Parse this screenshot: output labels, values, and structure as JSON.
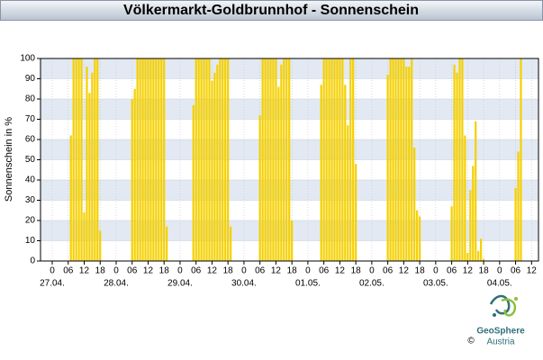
{
  "chart_data": {
    "type": "bar",
    "title": "Völkermarkt-Goldbrunnhof - Sonnenschein",
    "y_label": "Sonnenschein in %",
    "color": "#f5d000",
    "x": [
      7,
      8,
      9,
      10,
      11,
      12,
      13,
      14,
      15,
      16,
      17,
      18,
      30,
      31,
      32,
      33,
      34,
      35,
      36,
      37,
      38,
      39,
      40,
      41,
      42,
      43,
      53,
      54,
      55,
      56,
      57,
      58,
      59,
      60,
      61,
      62,
      63,
      64,
      65,
      66,
      67,
      78,
      79,
      80,
      81,
      82,
      83,
      84,
      85,
      86,
      87,
      88,
      89,
      90,
      101,
      102,
      103,
      104,
      105,
      106,
      107,
      108,
      109,
      110,
      111,
      112,
      113,
      114,
      126,
      127,
      128,
      129,
      130,
      131,
      132,
      133,
      134,
      135,
      136,
      137,
      138,
      150,
      151,
      152,
      153,
      154,
      155,
      156,
      157,
      158,
      159,
      160,
      161,
      162,
      174,
      175,
      176
    ],
    "values": [
      62,
      100,
      100,
      100,
      100,
      24,
      96,
      83,
      93,
      100,
      100,
      15,
      80,
      85,
      100,
      100,
      100,
      100,
      100,
      100,
      100,
      100,
      100,
      100,
      100,
      17,
      77,
      100,
      100,
      100,
      100,
      100,
      100,
      89,
      93,
      97,
      100,
      100,
      100,
      100,
      17,
      72,
      100,
      100,
      100,
      100,
      100,
      100,
      86,
      97,
      100,
      100,
      100,
      20,
      87,
      100,
      100,
      100,
      100,
      100,
      100,
      100,
      100,
      87,
      67,
      100,
      100,
      48,
      92,
      100,
      100,
      100,
      100,
      100,
      100,
      96,
      96,
      100,
      56,
      25,
      22,
      27,
      97,
      93,
      100,
      100,
      62,
      4,
      35,
      47,
      69,
      5,
      11,
      1,
      36,
      54,
      100
    ],
    "xlim": [
      -4.4,
      182.6
    ],
    "xticks": [
      0,
      {
        "value": 6,
        "label": "06"
      },
      12,
      18,
      {
        "value": 24,
        "label": "0"
      },
      {
        "value": 30,
        "label": "06"
      },
      {
        "value": 36,
        "label": "12"
      },
      {
        "value": 42,
        "label": "18"
      },
      {
        "value": 48,
        "label": "0"
      },
      {
        "value": 54,
        "label": "06"
      },
      {
        "value": 60,
        "label": "12"
      },
      {
        "value": 66,
        "label": "18"
      },
      {
        "value": 72,
        "label": "0"
      },
      {
        "value": 78,
        "label": "06"
      },
      {
        "value": 84,
        "label": "12"
      },
      {
        "value": 90,
        "label": "18"
      },
      {
        "value": 96,
        "label": "0"
      },
      {
        "value": 102,
        "label": "06"
      },
      {
        "value": 108,
        "label": "12"
      },
      {
        "value": 114,
        "label": "18"
      },
      {
        "value": 120,
        "label": "0"
      },
      {
        "value": 126,
        "label": "06"
      },
      {
        "value": 132,
        "label": "12"
      },
      {
        "value": 138,
        "label": "18"
      },
      {
        "value": 144,
        "label": "0"
      },
      {
        "value": 150,
        "label": "06"
      },
      {
        "value": 156,
        "label": "12"
      },
      {
        "value": 162,
        "label": "18"
      },
      {
        "value": 168,
        "label": "0"
      },
      {
        "value": 174,
        "label": "06"
      },
      {
        "value": 180,
        "label": "12"
      }
    ],
    "x_date_labels": [
      {
        "value": 0,
        "label": "27.04."
      },
      {
        "value": 24,
        "label": "28.04."
      },
      {
        "value": 48,
        "label": "29.04."
      },
      {
        "value": 72,
        "label": "30.04."
      },
      {
        "value": 96,
        "label": "01.05."
      },
      {
        "value": 120,
        "label": "02.05."
      },
      {
        "value": 144,
        "label": "03.05."
      },
      {
        "value": 168,
        "label": "04.05."
      }
    ],
    "ylim": [
      0,
      100
    ],
    "yticks": [
      0,
      10,
      20,
      30,
      40,
      50,
      60,
      70,
      80,
      90,
      100
    ],
    "grid": true
  },
  "footer": {
    "logo_name": "GeoSphere",
    "logo_sub": "Austria",
    "copyright": "©"
  }
}
